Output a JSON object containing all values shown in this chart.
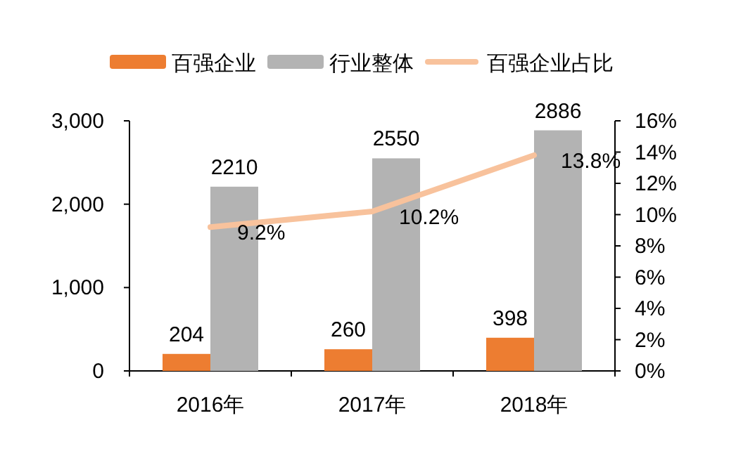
{
  "chart_data": {
    "type": "bar",
    "categories": [
      "2016年",
      "2017年",
      "2018年"
    ],
    "series": [
      {
        "name": "百强企业",
        "color": "#ed7d31",
        "values": [
          204,
          260,
          398
        ]
      },
      {
        "name": "行业整体",
        "color": "#b3b3b3",
        "values": [
          2210,
          2550,
          2886
        ]
      },
      {
        "name": "百强企业占比",
        "type": "line",
        "axis": "y2",
        "color": "#f8c29c",
        "values": [
          9.2,
          10.2,
          13.8
        ],
        "value_labels": [
          "9.2%",
          "10.2%",
          "13.8%"
        ]
      }
    ],
    "ylim": [
      0,
      3000
    ],
    "yticks": [
      {
        "value": 0,
        "label": "0"
      },
      {
        "value": 1000,
        "label": "1,000"
      },
      {
        "value": 2000,
        "label": "2,000"
      },
      {
        "value": 3000,
        "label": "3,000"
      }
    ],
    "y2lim": [
      0,
      16
    ],
    "y2ticks": [
      {
        "value": 0,
        "label": "0%"
      },
      {
        "value": 2,
        "label": "2%"
      },
      {
        "value": 4,
        "label": "4%"
      },
      {
        "value": 6,
        "label": "6%"
      },
      {
        "value": 8,
        "label": "8%"
      },
      {
        "value": 10,
        "label": "10%"
      },
      {
        "value": 12,
        "label": "12%"
      },
      {
        "value": 14,
        "label": "14%"
      },
      {
        "value": 16,
        "label": "16%"
      }
    ],
    "data_labels": true,
    "legend": "top",
    "grid": false
  }
}
